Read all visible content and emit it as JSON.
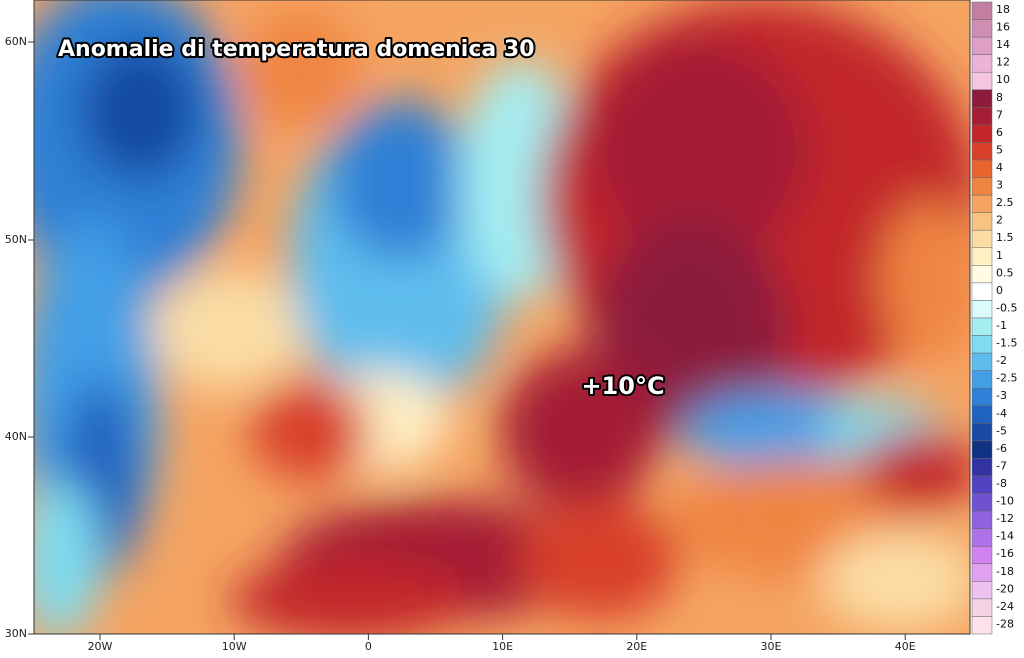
{
  "title": "Anomalie di temperatura domenica 30",
  "annotation": "+10°C",
  "lat_ticks": [
    "60N",
    "50N",
    "40N",
    "30N"
  ],
  "lon_ticks": [
    "20W",
    "10W",
    "0",
    "10E",
    "20E",
    "30E",
    "40E"
  ],
  "colorbar": [
    {
      "label": "18",
      "color": "#c27fa2"
    },
    {
      "label": "16",
      "color": "#d18eb3"
    },
    {
      "label": "14",
      "color": "#df9fc4"
    },
    {
      "label": "12",
      "color": "#ecb3d6"
    },
    {
      "label": "10",
      "color": "#f5c6e2"
    },
    {
      "label": "8",
      "color": "#8c1b3c"
    },
    {
      "label": "7",
      "color": "#a41f36"
    },
    {
      "label": "6",
      "color": "#c2262c"
    },
    {
      "label": "5",
      "color": "#d8402a"
    },
    {
      "label": "4",
      "color": "#e8642f"
    },
    {
      "label": "3",
      "color": "#f08542"
    },
    {
      "label": "2.5",
      "color": "#f5a462"
    },
    {
      "label": "2",
      "color": "#f8c283"
    },
    {
      "label": "1.5",
      "color": "#fbdda4"
    },
    {
      "label": "1",
      "color": "#fff0c4"
    },
    {
      "label": "0.5",
      "color": "#fffbe4"
    },
    {
      "label": "0",
      "color": "#ffffff"
    },
    {
      "label": "-0.5",
      "color": "#dcfbfb"
    },
    {
      "label": "-1",
      "color": "#a4eef2"
    },
    {
      "label": "-1.5",
      "color": "#7fdcf0"
    },
    {
      "label": "-2",
      "color": "#5fbdee"
    },
    {
      "label": "-2.5",
      "color": "#429fe6"
    },
    {
      "label": "-3",
      "color": "#2f80d6"
    },
    {
      "label": "-4",
      "color": "#2062bf"
    },
    {
      "label": "-5",
      "color": "#184aa2"
    },
    {
      "label": "-6",
      "color": "#113282"
    },
    {
      "label": "-7",
      "color": "#3232a2"
    },
    {
      "label": "-8",
      "color": "#5142c0"
    },
    {
      "label": "-10",
      "color": "#6f52d0"
    },
    {
      "label": "-12",
      "color": "#8f62e0"
    },
    {
      "label": "-14",
      "color": "#ae72e8"
    },
    {
      "label": "-16",
      "color": "#cf82f0"
    },
    {
      "label": "-18",
      "color": "#e0a2f0"
    },
    {
      "label": "-20",
      "color": "#eec2ee"
    },
    {
      "label": "-24",
      "color": "#f6d2e2"
    },
    {
      "label": "-28",
      "color": "#fde2ea"
    }
  ]
}
